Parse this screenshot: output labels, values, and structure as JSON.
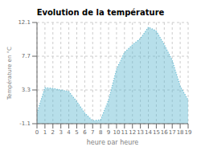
{
  "chart_data": {
    "type": "area",
    "title": "Evolution de la température",
    "xlabel": "heure par heure",
    "ylabel": "Température en °C",
    "x": [
      0,
      1,
      2,
      3,
      4,
      5,
      6,
      7,
      8,
      9,
      10,
      11,
      12,
      13,
      14,
      15,
      16,
      17,
      18,
      19
    ],
    "values": [
      0.3,
      3.6,
      3.5,
      3.3,
      3.1,
      1.8,
      0.3,
      -0.7,
      -0.6,
      2.0,
      6.0,
      8.2,
      9.2,
      10.0,
      11.5,
      11.0,
      9.2,
      7.2,
      3.8,
      2.0
    ],
    "color": "#60b8d0",
    "line_style": "dotted",
    "xlim": [
      0,
      19
    ],
    "ylim": [
      -1.1,
      12.1
    ],
    "xticks": [
      0,
      1,
      2,
      3,
      4,
      5,
      6,
      7,
      8,
      9,
      10,
      11,
      12,
      13,
      14,
      15,
      16,
      17,
      18,
      19
    ],
    "yticks": [
      -1.1,
      3.3,
      7.7,
      12.1
    ],
    "grid": true
  }
}
